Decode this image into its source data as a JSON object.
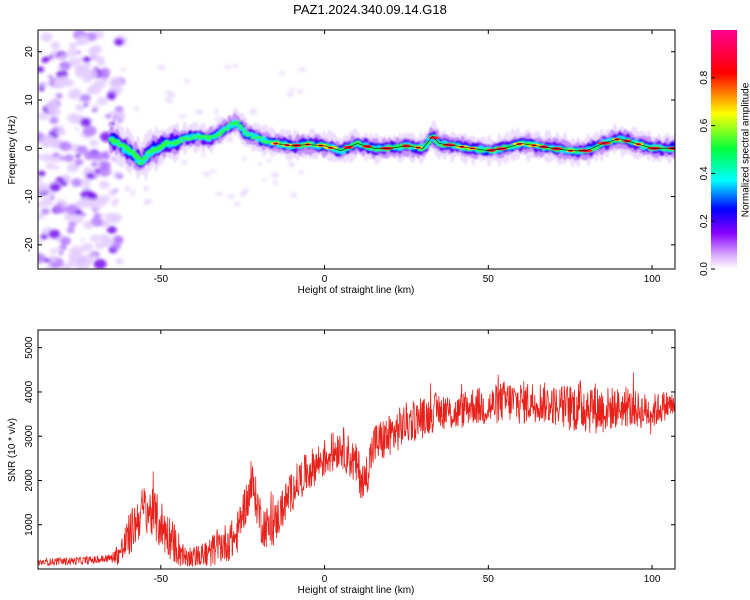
{
  "title": "PAZ1.2024.340.09.14.G18",
  "chart_data": [
    {
      "type": "heatmap",
      "xlabel": "Height of straight line (km)",
      "ylabel": "Frequency (Hz)",
      "xlim": [
        -87.5,
        107
      ],
      "ylim": [
        -25,
        24.5
      ],
      "xticks": [
        -50,
        0,
        50,
        100
      ],
      "yticks": [
        -20,
        -10,
        0,
        10,
        20
      ],
      "colorbar": {
        "label": "Normalized spectral amplitude",
        "range": [
          0,
          1
        ],
        "ticks": [
          0.0,
          0.2,
          0.4,
          0.6,
          0.8
        ],
        "colors": [
          "#ffffff",
          "#a000ff",
          "#0000ff",
          "#00ffff",
          "#00ff00",
          "#ffff00",
          "#ff0000",
          "#ff00aa"
        ]
      },
      "ridge_frequency_hz": [
        [
          -65,
          2
        ],
        [
          -62,
          0.5
        ],
        [
          -58,
          -1.5
        ],
        [
          -56,
          -3
        ],
        [
          -54,
          -1
        ],
        [
          -50,
          0.5
        ],
        [
          -45,
          1.5
        ],
        [
          -40,
          2.5
        ],
        [
          -35,
          2
        ],
        [
          -30,
          4
        ],
        [
          -27,
          5.5
        ],
        [
          -24,
          3
        ],
        [
          -20,
          2
        ],
        [
          -15,
          1
        ],
        [
          -10,
          0.5
        ],
        [
          -5,
          0.8
        ],
        [
          0,
          0.5
        ],
        [
          5,
          -0.5
        ],
        [
          10,
          1
        ],
        [
          15,
          0
        ],
        [
          20,
          0
        ],
        [
          25,
          0.5
        ],
        [
          30,
          0
        ],
        [
          33,
          2.5
        ],
        [
          35,
          1
        ],
        [
          40,
          0.5
        ],
        [
          45,
          0
        ],
        [
          50,
          -0.5
        ],
        [
          55,
          0
        ],
        [
          60,
          1
        ],
        [
          65,
          0.5
        ],
        [
          70,
          0
        ],
        [
          75,
          -0.5
        ],
        [
          80,
          -0.5
        ],
        [
          85,
          1
        ],
        [
          90,
          2
        ],
        [
          95,
          1
        ],
        [
          100,
          0
        ],
        [
          107,
          0
        ]
      ],
      "noise_region_km": [
        -87.5,
        -65
      ],
      "noise_frequency_range_hz": [
        -25,
        24
      ]
    },
    {
      "type": "line",
      "xlabel": "Height of straight line (km)",
      "ylabel": "SNR (10 * v/v)",
      "xlim": [
        -87.5,
        107
      ],
      "ylim": [
        0,
        5400
      ],
      "xticks": [
        -50,
        0,
        50,
        100
      ],
      "yticks": [
        1000,
        2000,
        3000,
        4000,
        5000
      ],
      "color": "#e8201a",
      "envelope": [
        [
          -87.5,
          150
        ],
        [
          -70,
          200
        ],
        [
          -65,
          250
        ],
        [
          -62,
          400
        ],
        [
          -58,
          1000
        ],
        [
          -55,
          1400
        ],
        [
          -52,
          1200
        ],
        [
          -48,
          800
        ],
        [
          -44,
          400
        ],
        [
          -40,
          250
        ],
        [
          -36,
          300
        ],
        [
          -33,
          500
        ],
        [
          -30,
          600
        ],
        [
          -27,
          700
        ],
        [
          -25,
          1300
        ],
        [
          -22,
          1900
        ],
        [
          -19,
          1000
        ],
        [
          -16,
          900
        ],
        [
          -12,
          1500
        ],
        [
          -8,
          2000
        ],
        [
          -5,
          2200
        ],
        [
          -2,
          2400
        ],
        [
          2,
          2600
        ],
        [
          5,
          2800
        ],
        [
          8,
          2500
        ],
        [
          10,
          2300
        ],
        [
          12,
          1900
        ],
        [
          15,
          2800
        ],
        [
          20,
          3000
        ],
        [
          25,
          3300
        ],
        [
          30,
          3400
        ],
        [
          35,
          3600
        ],
        [
          40,
          3500
        ],
        [
          45,
          3700
        ],
        [
          50,
          3650
        ],
        [
          55,
          3800
        ],
        [
          60,
          3750
        ],
        [
          65,
          3800
        ],
        [
          70,
          3700
        ],
        [
          75,
          3650
        ],
        [
          80,
          3700
        ],
        [
          85,
          3600
        ],
        [
          90,
          3650
        ],
        [
          95,
          3600
        ],
        [
          100,
          3550
        ],
        [
          104,
          3700
        ],
        [
          107,
          3700
        ]
      ],
      "noise_amplitude": [
        [
          -87.5,
          80
        ],
        [
          -65,
          100
        ],
        [
          -60,
          500
        ],
        [
          -50,
          600
        ],
        [
          -40,
          250
        ],
        [
          -30,
          450
        ],
        [
          -20,
          500
        ],
        [
          -10,
          450
        ],
        [
          0,
          450
        ],
        [
          10,
          500
        ],
        [
          20,
          500
        ],
        [
          30,
          450
        ],
        [
          40,
          400
        ],
        [
          50,
          450
        ],
        [
          60,
          500
        ],
        [
          70,
          450
        ],
        [
          80,
          650
        ],
        [
          90,
          450
        ],
        [
          100,
          400
        ],
        [
          107,
          300
        ]
      ]
    }
  ]
}
